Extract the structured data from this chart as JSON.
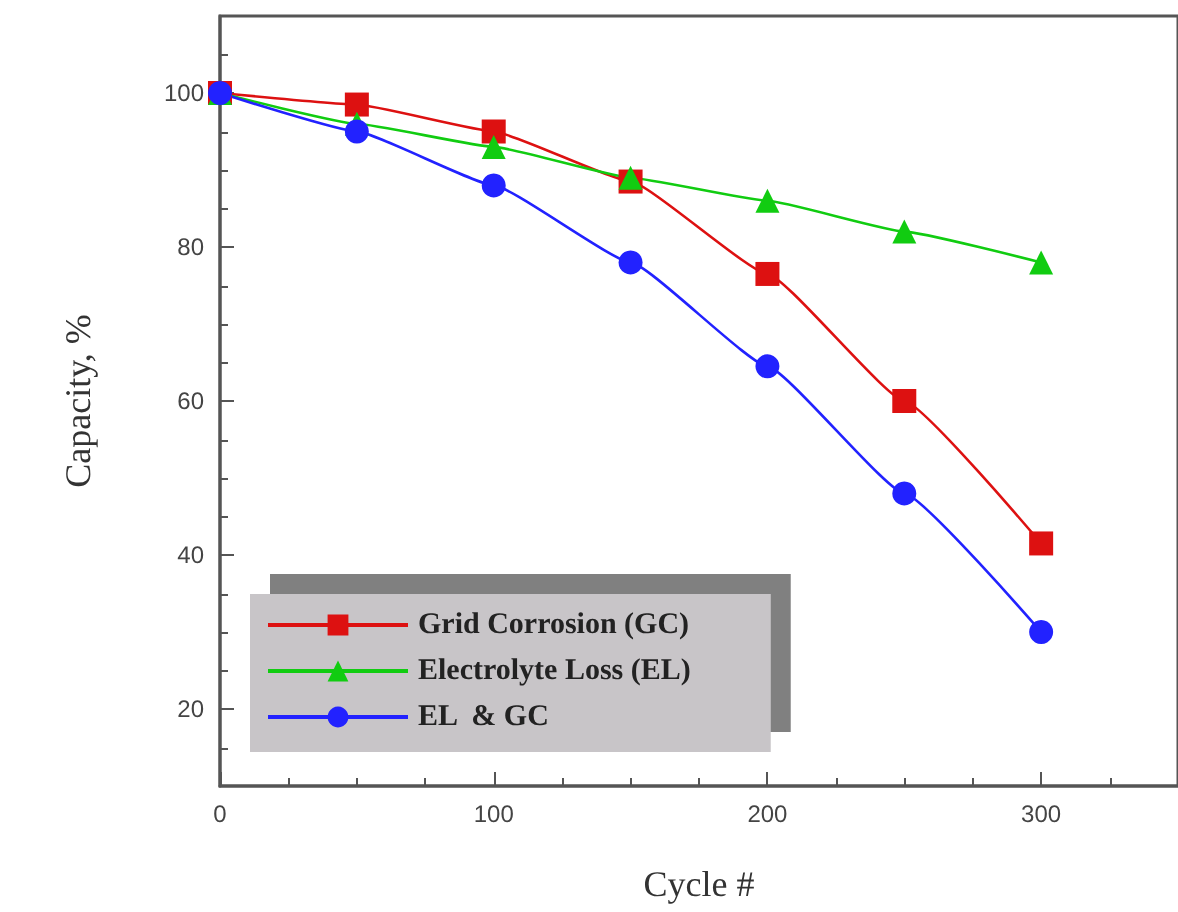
{
  "chart_data": {
    "type": "line",
    "xlabel": "Cycle #",
    "ylabel": "Capacity, %",
    "x": [
      0,
      50,
      100,
      150,
      200,
      250,
      300
    ],
    "series": [
      {
        "name": "Grid Corrosion (GC)",
        "color": "#dd1111",
        "marker": "square",
        "values": [
          100,
          98.5,
          95,
          88.5,
          76.5,
          60,
          41.5
        ]
      },
      {
        "name": "Electrolyte Loss (EL)",
        "color": "#11cc11",
        "marker": "triangle",
        "values": [
          100,
          96,
          93,
          89,
          86,
          82,
          78
        ]
      },
      {
        "name": "EL  & GC",
        "color": "#2222ff",
        "marker": "circle",
        "values": [
          100,
          95,
          88,
          78,
          64.5,
          48,
          30
        ]
      }
    ],
    "xlim": [
      0,
      350
    ],
    "xticks": [
      0,
      100,
      200,
      300
    ],
    "ylim": [
      10,
      110
    ],
    "yticks": [
      20,
      40,
      60,
      80,
      100
    ],
    "grid": false,
    "legend": "bottom left",
    "line_style": "solid"
  }
}
